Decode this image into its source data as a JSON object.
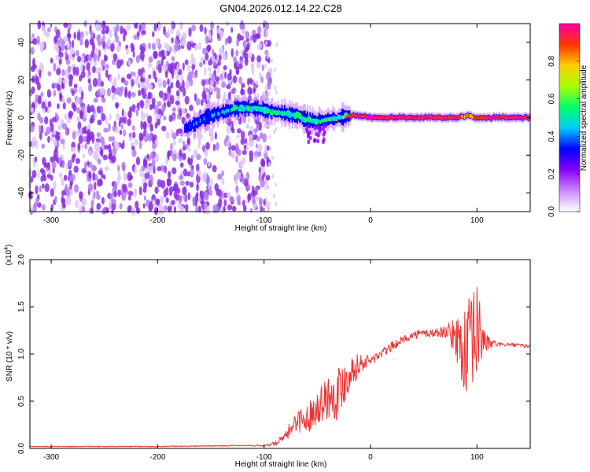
{
  "figure": {
    "title": "GN04.2026.012.14.22.C28"
  },
  "chart_data": [
    {
      "type": "heatmap",
      "xlabel": "Height of straight line (km)",
      "ylabel": "Frequency (Hz)",
      "xlim": [
        -320,
        150
      ],
      "ylim": [
        -50,
        50
      ],
      "x_ticks": [
        -300,
        -200,
        -100,
        0,
        100
      ],
      "y_ticks": [
        -40,
        -20,
        0,
        20,
        40
      ],
      "colorbar": {
        "label": "Normalized spectral amplitude",
        "range": [
          0.0,
          1.0
        ],
        "ticks": [
          "0.0",
          "0.2",
          "0.4",
          "0.6",
          "0.8"
        ],
        "colors": [
          "#ffffff",
          "#cc88ff",
          "#8800ff",
          "#0000ff",
          "#00ccff",
          "#00ff66",
          "#aaff00",
          "#ffcc00",
          "#ff3300",
          "#ff00aa"
        ]
      },
      "noise_region_x": [
        -320,
        -100
      ],
      "ridge": {
        "x": [
          -175,
          -165,
          -155,
          -140,
          -125,
          -110,
          -100,
          -90,
          -80,
          -70,
          -60,
          -50,
          -40,
          -30,
          -20,
          -10,
          0,
          20,
          40,
          60,
          80,
          90,
          100,
          110,
          130,
          150
        ],
        "y": [
          -6,
          -3,
          0,
          3,
          5,
          5,
          4,
          3,
          2,
          1,
          -1,
          -2,
          -1,
          0,
          1,
          1,
          0,
          0,
          0,
          0,
          0,
          1,
          0,
          0,
          0,
          0
        ],
        "amplitude": [
          0.3,
          0.35,
          0.4,
          0.4,
          0.45,
          0.5,
          0.5,
          0.55,
          0.5,
          0.5,
          0.55,
          0.5,
          0.6,
          0.75,
          0.85,
          0.9,
          0.95,
          0.95,
          0.95,
          0.95,
          0.95,
          0.8,
          0.9,
          0.95,
          0.95,
          0.95
        ]
      }
    },
    {
      "type": "line",
      "xlabel": "Height of straight line (km)",
      "ylabel": "SNR (10 * v/v)",
      "y_multiplier": "(x10",
      "y_multiplier_exp": "4",
      "xlim": [
        -320,
        150
      ],
      "ylim": [
        0,
        2.0
      ],
      "x_ticks": [
        -300,
        -200,
        -100,
        0,
        100
      ],
      "y_ticks": [
        "0.0",
        "0.5",
        "1.0",
        "1.5",
        "2.0"
      ],
      "color": "#ee3333",
      "series": [
        {
          "x": [
            -320,
            -200,
            -120,
            -100,
            -90,
            -80,
            -70,
            -60,
            -50,
            -40,
            -30,
            -20,
            -10,
            0,
            10,
            20,
            30,
            40,
            50,
            60,
            70,
            80,
            85,
            90,
            95,
            100,
            105,
            110,
            120,
            130,
            140,
            150
          ],
          "y": [
            0.02,
            0.02,
            0.03,
            0.03,
            0.05,
            0.12,
            0.3,
            0.3,
            0.45,
            0.55,
            0.6,
            0.8,
            0.9,
            0.93,
            1.0,
            1.08,
            1.15,
            1.2,
            1.22,
            1.22,
            1.24,
            1.18,
            1.1,
            1.0,
            1.05,
            1.25,
            1.18,
            1.12,
            1.1,
            1.1,
            1.09,
            1.08
          ],
          "noise_amplitude": [
            0.005,
            0.005,
            0.005,
            0.01,
            0.02,
            0.05,
            0.12,
            0.15,
            0.18,
            0.25,
            0.3,
            0.2,
            0.1,
            0.06,
            0.05,
            0.05,
            0.04,
            0.04,
            0.05,
            0.05,
            0.06,
            0.2,
            0.4,
            0.55,
            0.6,
            0.5,
            0.25,
            0.08,
            0.02,
            0.02,
            0.02,
            0.02
          ]
        }
      ]
    }
  ]
}
